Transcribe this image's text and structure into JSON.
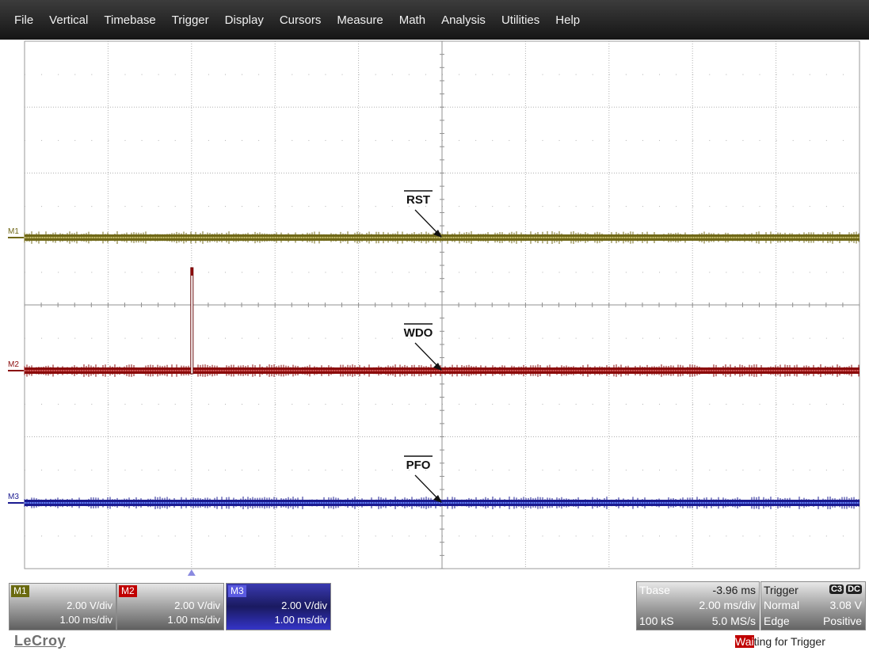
{
  "menu": [
    "File",
    "Vertical",
    "Timebase",
    "Trigger",
    "Display",
    "Cursors",
    "Measure",
    "Math",
    "Analysis",
    "Utilities",
    "Help"
  ],
  "traces": [
    {
      "marker": "M1",
      "label": "RST",
      "color": "#706818",
      "level_color": "#c8c070"
    },
    {
      "marker": "M2",
      "label": "WDO",
      "color": "#8a0a0a",
      "level_color": "#d86060"
    },
    {
      "marker": "M3",
      "label": "PFO",
      "color": "#1a1a90",
      "level_color": "#6a8aff"
    }
  ],
  "channels": [
    {
      "tag": "M1",
      "vdiv": "2.00 V/div",
      "tdiv": "1.00 ms/div",
      "tag_color": "#6a6a10"
    },
    {
      "tag": "M2",
      "vdiv": "2.00 V/div",
      "tdiv": "1.00 ms/div",
      "tag_color": "#c00000"
    },
    {
      "tag": "M3",
      "vdiv": "2.00 V/div",
      "tdiv": "1.00 ms/div",
      "tag_color": "#5a5ae0"
    }
  ],
  "timebase": {
    "label": "Tbase",
    "delay": "-3.96 ms",
    "tdiv": "2.00 ms/div",
    "samples": "100 kS",
    "rate": "5.0 MS/s"
  },
  "trigger": {
    "label": "Trigger",
    "source": "C3",
    "coupling": "DC",
    "mode": "Normal",
    "level": "3.08 V",
    "type": "Edge",
    "slope": "Positive"
  },
  "logo": "LeCroy",
  "status": {
    "highlight": "Wai",
    "rest": "ting for Trigger"
  }
}
